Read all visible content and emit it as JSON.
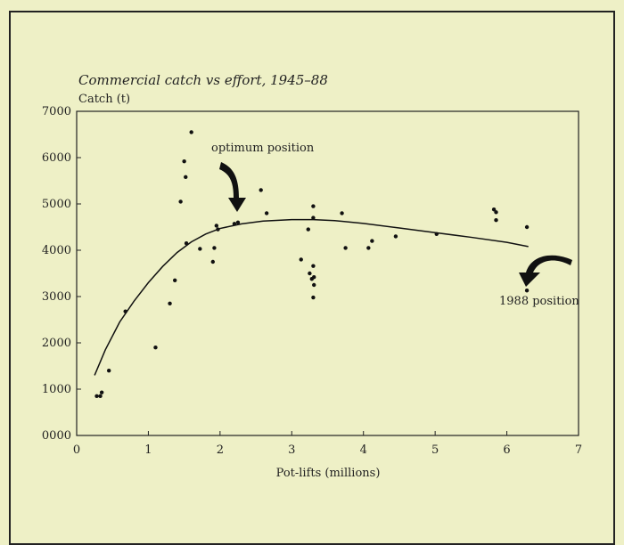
{
  "chart_data": {
    "type": "scatter",
    "title": "Commercial catch vs effort, 1945–88",
    "ylabel": "Catch (t)",
    "xlabel": "Pot-lifts (millions)",
    "xlim": [
      0,
      7
    ],
    "ylim": [
      0,
      7000
    ],
    "x_ticks": [
      "0",
      "1",
      "2",
      "3",
      "4",
      "5",
      "6",
      "7"
    ],
    "y_ticks": [
      "0000",
      "1000",
      "2000",
      "3000",
      "4000",
      "5000",
      "6000",
      "7000"
    ],
    "points": [
      {
        "x": 0.28,
        "y": 850
      },
      {
        "x": 0.33,
        "y": 850
      },
      {
        "x": 0.35,
        "y": 930
      },
      {
        "x": 0.45,
        "y": 1400
      },
      {
        "x": 0.68,
        "y": 2680
      },
      {
        "x": 1.1,
        "y": 1900
      },
      {
        "x": 1.3,
        "y": 2850
      },
      {
        "x": 1.37,
        "y": 3350
      },
      {
        "x": 1.45,
        "y": 5050
      },
      {
        "x": 1.5,
        "y": 5920
      },
      {
        "x": 1.52,
        "y": 5580
      },
      {
        "x": 1.53,
        "y": 4150
      },
      {
        "x": 1.6,
        "y": 6550
      },
      {
        "x": 1.72,
        "y": 4030
      },
      {
        "x": 1.9,
        "y": 3750
      },
      {
        "x": 1.92,
        "y": 4050
      },
      {
        "x": 1.95,
        "y": 4530
      },
      {
        "x": 1.97,
        "y": 4450
      },
      {
        "x": 2.2,
        "y": 4570
      },
      {
        "x": 2.25,
        "y": 4600
      },
      {
        "x": 2.57,
        "y": 5300
      },
      {
        "x": 2.65,
        "y": 4800
      },
      {
        "x": 3.13,
        "y": 3800
      },
      {
        "x": 3.23,
        "y": 4450
      },
      {
        "x": 3.25,
        "y": 3500
      },
      {
        "x": 3.28,
        "y": 3380
      },
      {
        "x": 3.3,
        "y": 4950
      },
      {
        "x": 3.3,
        "y": 4700
      },
      {
        "x": 3.3,
        "y": 3660
      },
      {
        "x": 3.31,
        "y": 3420
      },
      {
        "x": 3.31,
        "y": 3250
      },
      {
        "x": 3.3,
        "y": 2980
      },
      {
        "x": 3.7,
        "y": 4800
      },
      {
        "x": 3.75,
        "y": 4050
      },
      {
        "x": 4.07,
        "y": 4050
      },
      {
        "x": 4.12,
        "y": 4200
      },
      {
        "x": 4.45,
        "y": 4300
      },
      {
        "x": 5.02,
        "y": 4350
      },
      {
        "x": 5.82,
        "y": 4880
      },
      {
        "x": 5.85,
        "y": 4820
      },
      {
        "x": 5.85,
        "y": 4650
      },
      {
        "x": 6.28,
        "y": 4500
      },
      {
        "x": 6.28,
        "y": 3130
      }
    ],
    "curve": [
      [
        0.25,
        1300
      ],
      [
        0.4,
        1850
      ],
      [
        0.6,
        2450
      ],
      [
        0.8,
        2900
      ],
      [
        1.0,
        3300
      ],
      [
        1.2,
        3650
      ],
      [
        1.4,
        3950
      ],
      [
        1.6,
        4180
      ],
      [
        1.8,
        4350
      ],
      [
        2.0,
        4470
      ],
      [
        2.3,
        4570
      ],
      [
        2.6,
        4630
      ],
      [
        3.0,
        4660
      ],
      [
        3.3,
        4660
      ],
      [
        3.6,
        4640
      ],
      [
        4.0,
        4580
      ],
      [
        4.5,
        4480
      ],
      [
        5.0,
        4380
      ],
      [
        5.5,
        4280
      ],
      [
        6.0,
        4170
      ],
      [
        6.3,
        4080
      ]
    ],
    "annotations": [
      {
        "text": "optimum position"
      },
      {
        "text": "1988 position"
      }
    ]
  }
}
